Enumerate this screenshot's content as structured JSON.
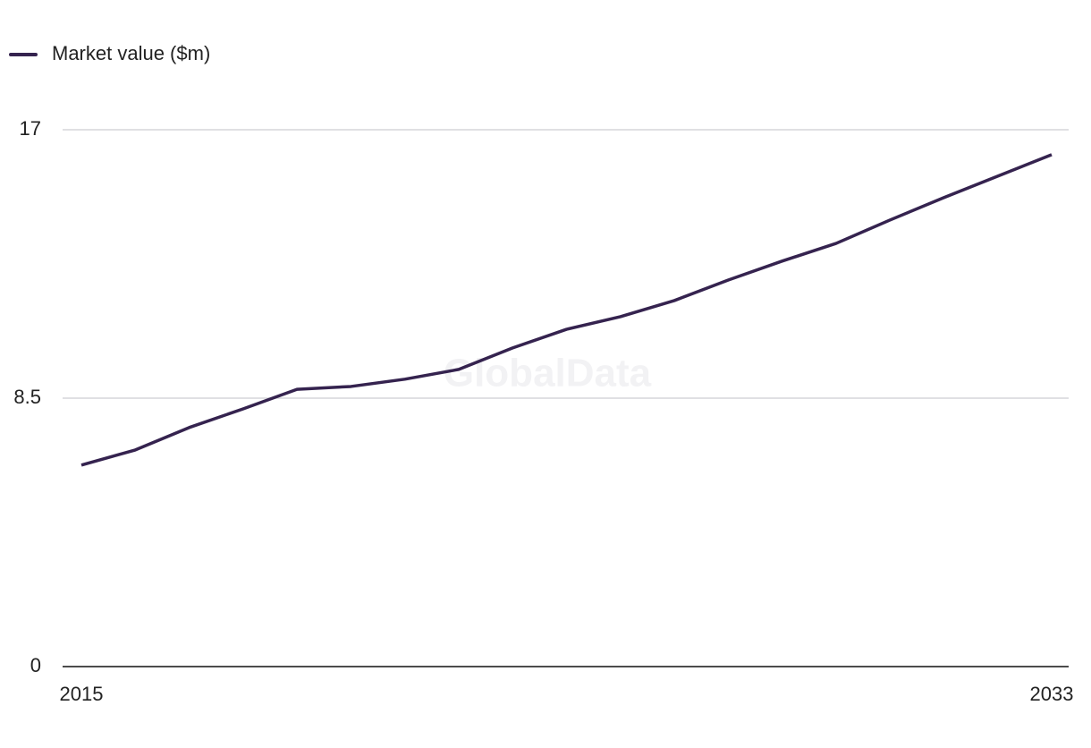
{
  "chart_data": {
    "type": "line",
    "watermark": "GlobalData",
    "x": [
      2015,
      2016,
      2017,
      2018,
      2019,
      2020,
      2021,
      2022,
      2023,
      2024,
      2025,
      2026,
      2027,
      2028,
      2029,
      2030,
      2031,
      2032,
      2033
    ],
    "series": [
      {
        "name": "Market value ($m)",
        "color": "#35234f",
        "values": [
          6.38,
          6.86,
          7.57,
          8.16,
          8.78,
          8.87,
          9.1,
          9.41,
          10.09,
          10.68,
          11.08,
          11.59,
          12.24,
          12.84,
          13.4,
          14.14,
          14.85,
          15.53,
          16.21
        ]
      }
    ],
    "xlim": [
      2015,
      2033
    ],
    "xticks": [
      2015,
      2033
    ],
    "ylim": [
      0,
      17
    ],
    "yticks": [
      0,
      8.5,
      17
    ],
    "grid": true,
    "legend": "top-left"
  }
}
